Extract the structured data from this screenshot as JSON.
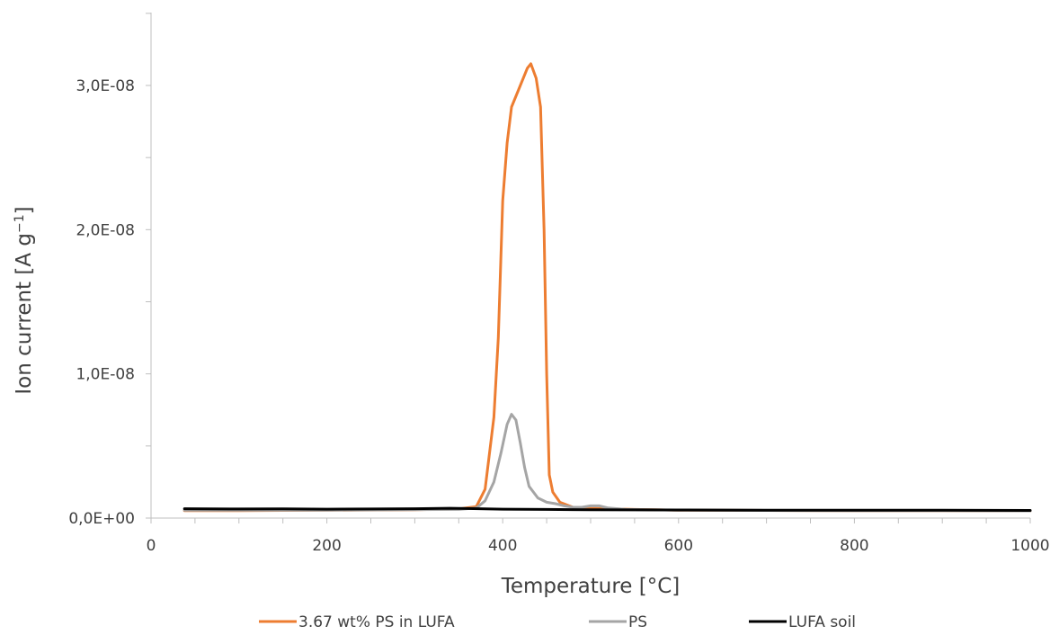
{
  "chart_data": {
    "type": "line",
    "xlabel": "Temperature [°C]",
    "ylabel": "Ion current [A g",
    "ylabel_superscript": "−1",
    "ylabel_suffix": "]",
    "xlim": [
      0,
      1000
    ],
    "ylim": [
      0,
      3.5e-08
    ],
    "x_ticks": [
      0,
      200,
      400,
      600,
      800,
      1000
    ],
    "x_tick_labels": [
      "0",
      "200",
      "400",
      "600",
      "800",
      "1000"
    ],
    "y_ticks": [
      0,
      1e-08,
      2e-08,
      3e-08
    ],
    "y_tick_labels": [
      "0,0E+00",
      "1,0E-08",
      "2,0E-08",
      "3,0E-08"
    ],
    "grid": false,
    "legend_position": "bottom",
    "series": [
      {
        "name": "3.67 wt% PS in LUFA",
        "color": "#ED7D31",
        "points": [
          [
            38,
            5.2e-10
          ],
          [
            100,
            5.2e-10
          ],
          [
            200,
            5.4e-10
          ],
          [
            300,
            5.8e-10
          ],
          [
            350,
            6.3e-10
          ],
          [
            370,
            8e-10
          ],
          [
            380,
            2e-09
          ],
          [
            390,
            7e-09
          ],
          [
            395,
            1.25e-08
          ],
          [
            400,
            2.2e-08
          ],
          [
            405,
            2.6e-08
          ],
          [
            410,
            2.85e-08
          ],
          [
            420,
            3e-08
          ],
          [
            428,
            3.12e-08
          ],
          [
            432,
            3.15e-08
          ],
          [
            438,
            3.05e-08
          ],
          [
            443,
            2.85e-08
          ],
          [
            447,
            2e-08
          ],
          [
            450,
            1e-08
          ],
          [
            453,
            3e-09
          ],
          [
            457,
            1.8e-09
          ],
          [
            465,
            1.1e-09
          ],
          [
            480,
            7.5e-10
          ],
          [
            500,
            6.8e-10
          ],
          [
            550,
            6e-10
          ],
          [
            600,
            5.5e-10
          ],
          [
            700,
            5.3e-10
          ],
          [
            800,
            5.2e-10
          ],
          [
            900,
            5.1e-10
          ],
          [
            1000,
            5e-10
          ]
        ]
      },
      {
        "name": "PS",
        "color": "#A5A5A5",
        "points": [
          [
            38,
            5.5e-10
          ],
          [
            200,
            5.5e-10
          ],
          [
            350,
            6e-10
          ],
          [
            370,
            7e-10
          ],
          [
            380,
            1.2e-09
          ],
          [
            390,
            2.5e-09
          ],
          [
            398,
            4.5e-09
          ],
          [
            405,
            6.5e-09
          ],
          [
            410,
            7.2e-09
          ],
          [
            415,
            6.8e-09
          ],
          [
            420,
            5.2e-09
          ],
          [
            425,
            3.5e-09
          ],
          [
            430,
            2.2e-09
          ],
          [
            440,
            1.4e-09
          ],
          [
            450,
            1.1e-09
          ],
          [
            460,
            1e-09
          ],
          [
            470,
            8.5e-10
          ],
          [
            480,
            7.5e-10
          ],
          [
            490,
            7.5e-10
          ],
          [
            500,
            8.5e-10
          ],
          [
            510,
            8.5e-10
          ],
          [
            520,
            7e-10
          ],
          [
            540,
            6e-10
          ],
          [
            600,
            5.5e-10
          ],
          [
            700,
            5.3e-10
          ],
          [
            800,
            5.2e-10
          ],
          [
            900,
            5.1e-10
          ],
          [
            1000,
            5e-10
          ]
        ]
      },
      {
        "name": "LUFA soil",
        "color": "#000000",
        "points": [
          [
            38,
            6.5e-10
          ],
          [
            100,
            6.3e-10
          ],
          [
            150,
            6.4e-10
          ],
          [
            200,
            6.2e-10
          ],
          [
            250,
            6.3e-10
          ],
          [
            300,
            6.5e-10
          ],
          [
            340,
            6.8e-10
          ],
          [
            360,
            6.6e-10
          ],
          [
            400,
            6.2e-10
          ],
          [
            450,
            6e-10
          ],
          [
            500,
            5.8e-10
          ],
          [
            600,
            5.6e-10
          ],
          [
            700,
            5.5e-10
          ],
          [
            800,
            5.5e-10
          ],
          [
            900,
            5.4e-10
          ],
          [
            1000,
            5.3e-10
          ]
        ]
      }
    ]
  }
}
